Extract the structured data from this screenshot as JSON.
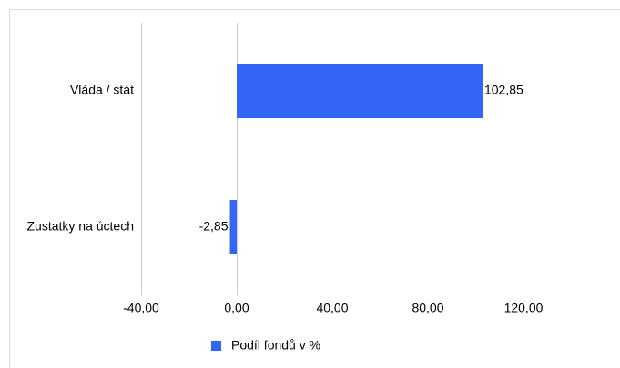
{
  "chart_data": {
    "type": "hbar",
    "categories": [
      "Vláda / stát",
      "Zustatky na úctech"
    ],
    "series": [
      {
        "name": "Podíl fondů v %",
        "color": "#3366f5",
        "values": [
          102.85,
          -2.85
        ],
        "value_labels": [
          "102,85",
          "-2,85"
        ]
      }
    ],
    "xlim": [
      -40,
      160
    ],
    "xticks": [
      {
        "value": -40,
        "label": "-40,00"
      },
      {
        "value": 0,
        "label": "0,00"
      },
      {
        "value": 40,
        "label": "40,00"
      },
      {
        "value": 80,
        "label": "80,00"
      },
      {
        "value": 120,
        "label": "120,00"
      }
    ],
    "legend": "bottom"
  }
}
